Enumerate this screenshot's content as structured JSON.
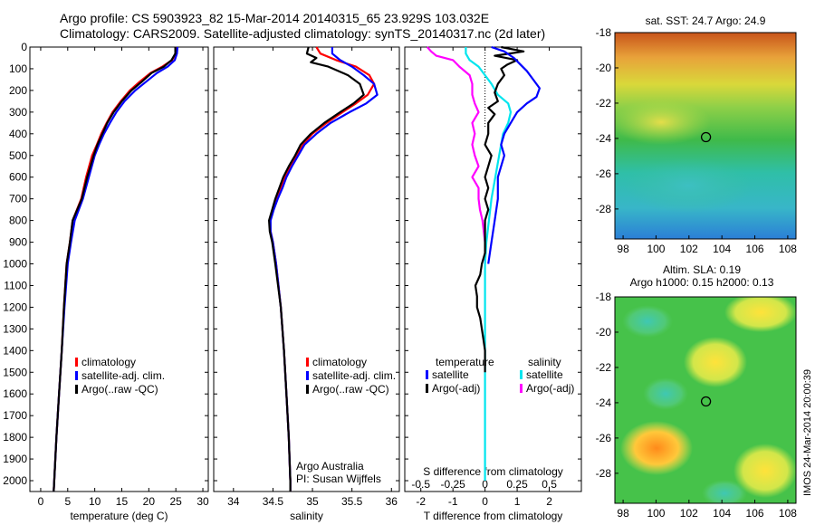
{
  "header": {
    "line1": "Argo profile: CS 5903923_82 15-Mar-2014 20140315_65 23.929S 103.032E",
    "line2": "Climatology: CARS2009. Satellite-adjusted climatology: synTS_20140317.nc (2d later)"
  },
  "colors": {
    "clim": "#ff0000",
    "sat": "#0000ff",
    "argo": "#000000",
    "sat_s": "#00e5ee",
    "argo_s": "#ff00ff"
  },
  "chart_data": [
    {
      "id": "temperature",
      "type": "line",
      "xlabel": "temperature (deg C)",
      "xlim": [
        -2,
        31
      ],
      "ylim": [
        2050,
        0
      ],
      "xticks": [
        0,
        5,
        10,
        15,
        20,
        25,
        30
      ],
      "yticks": [
        0,
        100,
        200,
        300,
        400,
        500,
        600,
        700,
        800,
        900,
        1000,
        1100,
        1200,
        1300,
        1400,
        1500,
        1600,
        1700,
        1800,
        1900,
        2000
      ],
      "legend": [
        "climatology",
        "satellite-adj. clim.",
        "Argo(..raw -QC)"
      ],
      "series": [
        {
          "key": "clim",
          "depth": [
            0,
            30,
            60,
            90,
            120,
            160,
            200,
            250,
            300,
            350,
            400,
            450,
            500,
            600,
            700,
            800,
            900,
            1000,
            1200,
            1400,
            1600,
            1800,
            2000,
            2050
          ],
          "values": [
            25.1,
            25.0,
            24.3,
            22.5,
            20.3,
            18.3,
            16.5,
            14.8,
            13.3,
            12.2,
            11.2,
            10.4,
            9.5,
            8.4,
            7.5,
            5.9,
            5.4,
            4.8,
            4.3,
            3.9,
            3.4,
            2.9,
            2.5,
            2.4
          ]
        },
        {
          "key": "sat",
          "depth": [
            0,
            30,
            60,
            90,
            120,
            160,
            200,
            250,
            300,
            350,
            400,
            450,
            500,
            600,
            700,
            800,
            900,
            1000,
            1200,
            1400,
            1600,
            1800,
            2000,
            2050
          ],
          "values": [
            25.3,
            25.2,
            24.8,
            23.5,
            21.5,
            19.5,
            17.5,
            15.5,
            14.0,
            12.8,
            11.7,
            10.8,
            10.0,
            8.9,
            7.8,
            6.3,
            5.6,
            5.0,
            4.4,
            3.9,
            3.4,
            2.9,
            2.5,
            2.4
          ]
        },
        {
          "key": "argo",
          "depth": [
            0,
            30,
            60,
            90,
            120,
            160,
            200,
            250,
            300,
            350,
            400,
            450,
            500,
            600,
            700,
            800,
            900,
            1000,
            1200,
            1400,
            1600,
            1800,
            2000,
            2050
          ],
          "values": [
            24.9,
            24.9,
            24.2,
            22.8,
            20.5,
            18.7,
            16.8,
            15.0,
            13.5,
            12.3,
            11.4,
            10.5,
            9.8,
            8.6,
            7.6,
            5.9,
            5.4,
            4.8,
            4.3,
            3.9,
            3.4,
            2.9,
            2.5,
            2.4
          ]
        }
      ]
    },
    {
      "id": "salinity",
      "type": "line",
      "xlabel": "salinity",
      "xlim": [
        33.75,
        36.1
      ],
      "ylim": [
        2050,
        0
      ],
      "xticks": [
        34,
        34.5,
        35,
        35.5,
        36
      ],
      "legend": [
        "climatology",
        "satellite-adj. clim.",
        "Argo(..raw -QC)"
      ],
      "annotation": [
        "Argo Australia",
        "PI: Susan Wijffels"
      ],
      "series": [
        {
          "key": "clim",
          "depth": [
            0,
            30,
            60,
            90,
            130,
            170,
            220,
            260,
            300,
            350,
            400,
            450,
            500,
            550,
            600,
            650,
            700,
            750,
            800,
            850,
            900,
            1000,
            1200,
            1400,
            1600,
            1800,
            2000,
            2050
          ],
          "values": [
            35.05,
            35.1,
            35.3,
            35.55,
            35.72,
            35.78,
            35.7,
            35.55,
            35.38,
            35.18,
            35.0,
            34.88,
            34.8,
            34.72,
            34.65,
            34.6,
            34.55,
            34.5,
            34.46,
            34.47,
            34.5,
            34.54,
            34.6,
            34.64,
            34.67,
            34.7,
            34.72,
            34.72
          ]
        },
        {
          "key": "sat",
          "depth": [
            0,
            30,
            60,
            90,
            130,
            170,
            220,
            260,
            300,
            350,
            400,
            450,
            500,
            550,
            600,
            650,
            700,
            750,
            800,
            850,
            900,
            1000,
            1200,
            1400,
            1600,
            1800,
            2000,
            2050
          ],
          "values": [
            35.25,
            35.25,
            35.35,
            35.5,
            35.65,
            35.78,
            35.82,
            35.68,
            35.47,
            35.23,
            35.05,
            34.9,
            34.82,
            34.74,
            34.67,
            34.62,
            34.56,
            34.51,
            34.47,
            34.47,
            34.5,
            34.54,
            34.6,
            34.64,
            34.67,
            34.7,
            34.72,
            34.72
          ]
        },
        {
          "key": "argo",
          "depth": [
            0,
            30,
            50,
            70,
            90,
            130,
            170,
            220,
            260,
            300,
            350,
            400,
            450,
            500,
            550,
            600,
            650,
            700,
            750,
            800,
            850,
            900,
            1000,
            1200,
            1400,
            1600,
            1800,
            2000,
            2050
          ],
          "values": [
            34.95,
            34.93,
            35.05,
            34.98,
            35.2,
            35.45,
            35.6,
            35.65,
            35.52,
            35.35,
            35.15,
            34.98,
            34.85,
            34.78,
            34.7,
            34.63,
            34.58,
            34.53,
            34.49,
            34.45,
            34.46,
            34.49,
            34.53,
            34.6,
            34.64,
            34.67,
            34.7,
            34.72,
            34.72
          ]
        }
      ]
    },
    {
      "id": "differences",
      "type": "line",
      "xlabel": "T difference from climatology",
      "xlabel_top": "S difference from climatology",
      "xlim": [
        -2.5,
        3.0
      ],
      "ylim": [
        2050,
        0
      ],
      "xticks": [
        -2,
        -1,
        0,
        1,
        2
      ],
      "xticks_top": [
        -0.5,
        -0.25,
        0,
        0.25,
        0.5
      ],
      "xticks_top_labels": [
        "-0.5",
        "-0.25",
        "0",
        "0.25",
        "0.5"
      ],
      "legend_temperature_title": "temperature",
      "legend_salinity_title": "salinity",
      "legend_temperature": [
        "satellite",
        "Argo(-adj)"
      ],
      "legend_salinity": [
        "satellite",
        "Argo(-adj)"
      ],
      "series": [
        {
          "key": "sat",
          "depth": [
            0,
            20,
            50,
            80,
            110,
            150,
            190,
            230,
            260,
            300,
            350,
            400,
            450,
            500,
            600,
            700,
            800,
            900,
            1000
          ],
          "values": [
            0.2,
            0.6,
            0.9,
            1.1,
            1.3,
            1.5,
            1.7,
            1.6,
            1.3,
            1.0,
            0.8,
            0.6,
            0.5,
            0.6,
            0.4,
            0.4,
            0.3,
            0.2,
            0.1
          ]
        },
        {
          "key": "argo",
          "depth": [
            0,
            20,
            40,
            60,
            80,
            100,
            130,
            170,
            210,
            250,
            280,
            310,
            350,
            400,
            450,
            500,
            550,
            600,
            650,
            700,
            750,
            800,
            850,
            900,
            950,
            1000,
            1050,
            1100,
            1150,
            1200,
            1250,
            1300,
            1350,
            1400,
            1450,
            1500
          ],
          "values": [
            0.5,
            1.2,
            0.3,
            1.0,
            0.7,
            0.5,
            0.6,
            0.4,
            0.3,
            0.4,
            0.1,
            0.3,
            0.1,
            0.1,
            0.0,
            0.2,
            0.1,
            0.0,
            0.1,
            0.0,
            0.1,
            0.0,
            0.0,
            0.0,
            0.0,
            -0.1,
            -0.15,
            -0.3,
            -0.25,
            -0.25,
            -0.15,
            -0.1,
            -0.05,
            0.0,
            0.0,
            0.0
          ]
        },
        {
          "key": "sat_s",
          "depth": [
            0,
            30,
            60,
            90,
            130,
            170,
            220,
            260,
            300,
            350,
            400,
            500,
            600,
            700,
            800,
            900,
            1000,
            1200,
            1400,
            1600,
            1800,
            2000
          ],
          "values": [
            -0.15,
            -0.15,
            -0.12,
            -0.05,
            0.0,
            0.05,
            0.1,
            0.18,
            0.2,
            0.18,
            0.14,
            0.11,
            0.08,
            0.05,
            0.03,
            0.01,
            0.0,
            0.0,
            0.0,
            0.0,
            0.0,
            0.0
          ]
        },
        {
          "key": "argo_s",
          "depth": [
            0,
            20,
            40,
            60,
            90,
            130,
            170,
            220,
            260,
            300,
            350,
            400,
            450,
            500,
            550,
            600,
            650,
            700,
            750,
            800,
            850,
            900,
            1000
          ],
          "values": [
            -0.45,
            -0.42,
            -0.38,
            -0.25,
            -0.2,
            -0.12,
            -0.1,
            -0.1,
            -0.08,
            -0.05,
            -0.1,
            -0.08,
            -0.1,
            -0.08,
            -0.05,
            -0.1,
            -0.05,
            -0.05,
            -0.04,
            -0.02,
            -0.01,
            0.0,
            0.0
          ]
        }
      ]
    },
    {
      "id": "sst_map",
      "type": "heatmap",
      "title": "sat. SST: 24.7 Argo: 24.9",
      "xlim": [
        97.5,
        108.5
      ],
      "ylim": [
        -29.7,
        -18
      ],
      "xticks": [
        98,
        100,
        102,
        104,
        106,
        108
      ],
      "yticks": [
        -18,
        -20,
        -22,
        -24,
        -26,
        -28
      ],
      "argo_location": [
        103.032,
        -23.929
      ]
    },
    {
      "id": "sla_map",
      "type": "heatmap",
      "title": "Altim. SLA: 0.19",
      "subtitle": "Argo h1000: 0.15 h2000: 0.13",
      "xlim": [
        97.5,
        108.5
      ],
      "ylim": [
        -29.7,
        -18
      ],
      "xticks": [
        98,
        100,
        102,
        104,
        106,
        108
      ],
      "yticks": [
        -18,
        -20,
        -22,
        -24,
        -26,
        -28
      ],
      "argo_location": [
        103.032,
        -23.929
      ]
    }
  ],
  "credit": "IMOS 24-Mar-2014 20:00:39"
}
